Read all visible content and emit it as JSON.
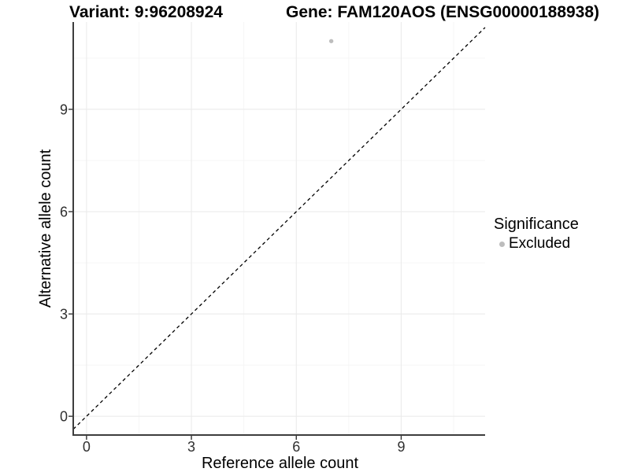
{
  "header": {
    "variant_title": "Variant: 9:96208924",
    "gene_title": "Gene: FAM120AOS (ENSG00000188938)"
  },
  "chart_data": {
    "type": "scatter",
    "xlabel": "Reference allele count",
    "ylabel": "Alternative allele count",
    "x_ticks": [
      0,
      3,
      6,
      9
    ],
    "y_ticks": [
      0,
      3,
      6,
      9
    ],
    "x_minor_ticks": [
      1.5,
      4.5,
      7.5,
      10.5
    ],
    "y_minor_ticks": [
      1.5,
      4.5,
      7.5,
      10.5
    ],
    "xlim": [
      -0.38,
      11.4
    ],
    "ylim": [
      -0.55,
      11.56
    ],
    "grid": true,
    "points": [
      {
        "x": 7,
        "y": 11,
        "series": "Excluded"
      }
    ],
    "identity_line": {
      "equation": "y = x",
      "style": "dashed",
      "color": "#000000"
    },
    "legend": {
      "title": "Significance",
      "position": "right",
      "items": [
        {
          "label": "Excluded",
          "marker": "circle",
          "color": "#bdbdbd"
        }
      ]
    }
  },
  "colors": {
    "background": "#ffffff",
    "grid_major": "#ebebeb",
    "grid_minor": "#f5f5f5",
    "axis_line": "#3d3d3d",
    "tick_mark": "#333333",
    "tick_text": "#303030",
    "text": "#000000",
    "point": "#bdbdbd"
  }
}
